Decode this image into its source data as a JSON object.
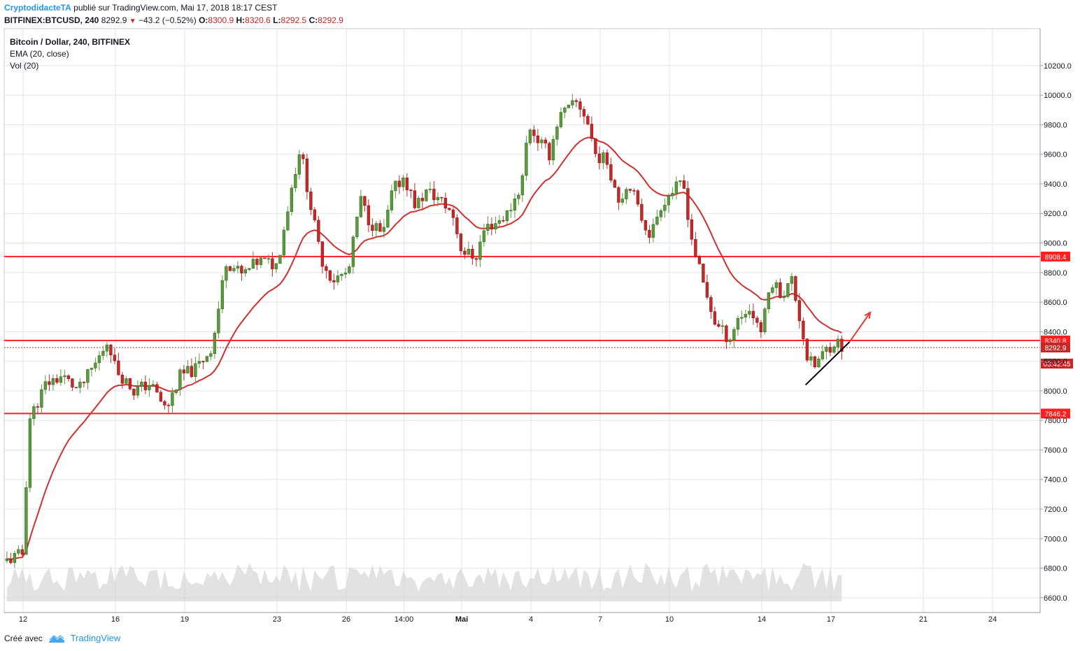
{
  "header": {
    "author": "CryptodidacteTA",
    "published": "publié sur TradingView.com, Mai 17, 2018 18:17 CEST",
    "symbol": "BITFINEX:BTCUSD, 240",
    "last": "8292.9",
    "change": "−43.2 (−0.52%)",
    "o_label": "O:",
    "o": "8300.9",
    "h_label": "H:",
    "h": "8320.6",
    "l_label": "L:",
    "l": "8292.5",
    "c_label": "C:",
    "c": "8292.9"
  },
  "legend": {
    "title": "Bitcoin / Dollar, 240, BITFINEX",
    "ema": "EMA (20, close)",
    "vol": "Vol (20)"
  },
  "footer": {
    "created": "Créé avec",
    "brand": "TradingView"
  },
  "colors": {
    "up": "#5b9a3c",
    "down": "#c62828",
    "ema": "#d32f2f",
    "level": "#ff1f1f",
    "grid": "#e0e3eb",
    "vol": "#d5d5d5"
  },
  "chart_data": {
    "type": "candlestick",
    "ylim": [
      6500,
      10450
    ],
    "y_ticks": [
      "6600.0",
      "6800.0",
      "7000.0",
      "7200.0",
      "7400.0",
      "7600.0",
      "7800.0",
      "8000.0",
      "8200.0",
      "8400.0",
      "8600.0",
      "8800.0",
      "9000.0",
      "9200.0",
      "9400.0",
      "9600.0",
      "9800.0",
      "10000.0",
      "10200.0"
    ],
    "x_ticks": [
      {
        "label": "12",
        "d": 0
      },
      {
        "label": "16",
        "d": 4
      },
      {
        "label": "19",
        "d": 7
      },
      {
        "label": "23",
        "d": 11
      },
      {
        "label": "26",
        "d": 14
      },
      {
        "label": "14:00",
        "d": 16.5
      },
      {
        "label": "Mai",
        "d": 19
      },
      {
        "label": "4",
        "d": 22
      },
      {
        "label": "7",
        "d": 25
      },
      {
        "label": "10",
        "d": 28
      },
      {
        "label": "14",
        "d": 32
      },
      {
        "label": "17",
        "d": 35
      },
      {
        "label": "21",
        "d": 39
      },
      {
        "label": "24",
        "d": 42
      }
    ],
    "horizontal_levels": [
      {
        "label": "8908.4",
        "value": 8908.4
      },
      {
        "label": "8340.8",
        "value": 8340.8
      },
      {
        "label": "7846.2",
        "value": 7846.2
      }
    ],
    "current_price": {
      "label": "8292.9",
      "value": 8292.9,
      "timer": "03:42:45"
    },
    "anchors": [
      {
        "d": -0.7,
        "p": 6850
      },
      {
        "d": 0.0,
        "p": 6900
      },
      {
        "d": 0.25,
        "p": 7800
      },
      {
        "d": 1.0,
        "p": 8050
      },
      {
        "d": 1.7,
        "p": 8100
      },
      {
        "d": 2.4,
        "p": 8000
      },
      {
        "d": 3.2,
        "p": 8200
      },
      {
        "d": 3.7,
        "p": 8350
      },
      {
        "d": 4.0,
        "p": 8150
      },
      {
        "d": 4.8,
        "p": 8000
      },
      {
        "d": 5.5,
        "p": 8050
      },
      {
        "d": 6.2,
        "p": 7870
      },
      {
        "d": 6.8,
        "p": 8100
      },
      {
        "d": 7.5,
        "p": 8150
      },
      {
        "d": 8.2,
        "p": 8300
      },
      {
        "d": 8.8,
        "p": 8880
      },
      {
        "d": 9.5,
        "p": 8780
      },
      {
        "d": 10.2,
        "p": 8880
      },
      {
        "d": 11.0,
        "p": 8850
      },
      {
        "d": 11.6,
        "p": 9350
      },
      {
        "d": 12.0,
        "p": 9650
      },
      {
        "d": 12.4,
        "p": 9300
      },
      {
        "d": 12.9,
        "p": 8900
      },
      {
        "d": 13.4,
        "p": 8750
      },
      {
        "d": 14.1,
        "p": 8800
      },
      {
        "d": 14.6,
        "p": 9300
      },
      {
        "d": 15.0,
        "p": 9150
      },
      {
        "d": 15.6,
        "p": 9050
      },
      {
        "d": 16.0,
        "p": 9350
      },
      {
        "d": 16.5,
        "p": 9450
      },
      {
        "d": 17.0,
        "p": 9250
      },
      {
        "d": 17.5,
        "p": 9350
      },
      {
        "d": 18.0,
        "p": 9300
      },
      {
        "d": 18.6,
        "p": 9200
      },
      {
        "d": 19.0,
        "p": 8950
      },
      {
        "d": 19.6,
        "p": 8900
      },
      {
        "d": 20.0,
        "p": 9100
      },
      {
        "d": 20.6,
        "p": 9150
      },
      {
        "d": 21.0,
        "p": 9200
      },
      {
        "d": 21.6,
        "p": 9400
      },
      {
        "d": 21.9,
        "p": 9800
      },
      {
        "d": 22.3,
        "p": 9700
      },
      {
        "d": 22.8,
        "p": 9600
      },
      {
        "d": 23.2,
        "p": 9850
      },
      {
        "d": 23.6,
        "p": 9900
      },
      {
        "d": 24.0,
        "p": 9950
      },
      {
        "d": 24.4,
        "p": 9850
      },
      {
        "d": 24.8,
        "p": 9600
      },
      {
        "d": 25.3,
        "p": 9550
      },
      {
        "d": 25.8,
        "p": 9300
      },
      {
        "d": 26.3,
        "p": 9400
      },
      {
        "d": 26.7,
        "p": 9200
      },
      {
        "d": 27.2,
        "p": 9050
      },
      {
        "d": 27.6,
        "p": 9250
      },
      {
        "d": 28.1,
        "p": 9350
      },
      {
        "d": 28.6,
        "p": 9400
      },
      {
        "d": 29.0,
        "p": 9000
      },
      {
        "d": 29.5,
        "p": 8700
      },
      {
        "d": 30.0,
        "p": 8450
      },
      {
        "d": 30.6,
        "p": 8350
      },
      {
        "d": 31.0,
        "p": 8500
      },
      {
        "d": 31.5,
        "p": 8550
      },
      {
        "d": 32.0,
        "p": 8400
      },
      {
        "d": 32.4,
        "p": 8750
      },
      {
        "d": 32.9,
        "p": 8650
      },
      {
        "d": 33.3,
        "p": 8750
      },
      {
        "d": 33.7,
        "p": 8450
      },
      {
        "d": 34.0,
        "p": 8200
      },
      {
        "d": 34.3,
        "p": 8170
      },
      {
        "d": 34.8,
        "p": 8280
      },
      {
        "d": 35.2,
        "p": 8340
      },
      {
        "d": 35.5,
        "p": 8292.9
      }
    ],
    "annotations": [
      {
        "type": "trendline",
        "from": {
          "d": 33.9,
          "p": 8040
        },
        "to": {
          "d": 35.8,
          "p": 8330
        }
      },
      {
        "type": "arrow",
        "from": {
          "d": 35.8,
          "p": 8330
        },
        "to": {
          "d": 36.7,
          "p": 8530
        }
      }
    ]
  }
}
